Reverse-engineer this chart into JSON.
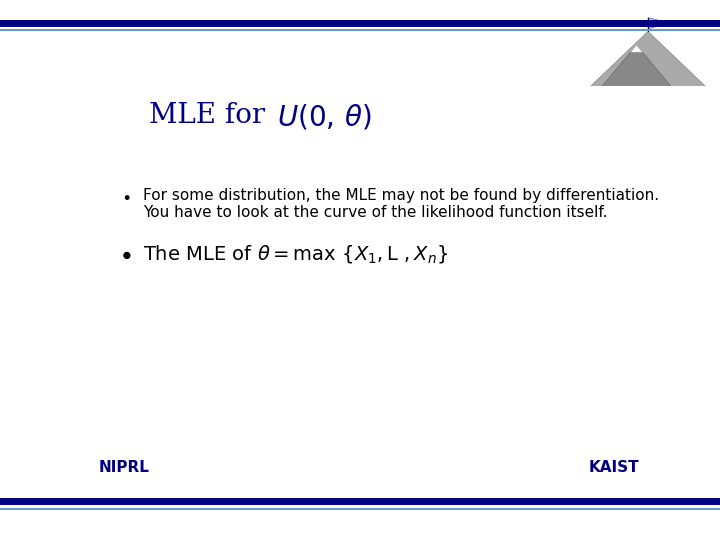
{
  "bg_color": "#ffffff",
  "navy_color": "#000080",
  "light_blue": "#6699cc",
  "title_plain": "MLE for ",
  "bullet1_line1": "For some distribution, the MLE may not be found by differentiation.",
  "bullet1_line2": "You have to look at the curve of the likelihood function itself.",
  "footer_left": "NIPRL",
  "footer_right": "KAIST",
  "title_fontsize": 20,
  "bullet1_fontsize": 11,
  "bullet2_fontsize": 14,
  "footer_fontsize": 11
}
